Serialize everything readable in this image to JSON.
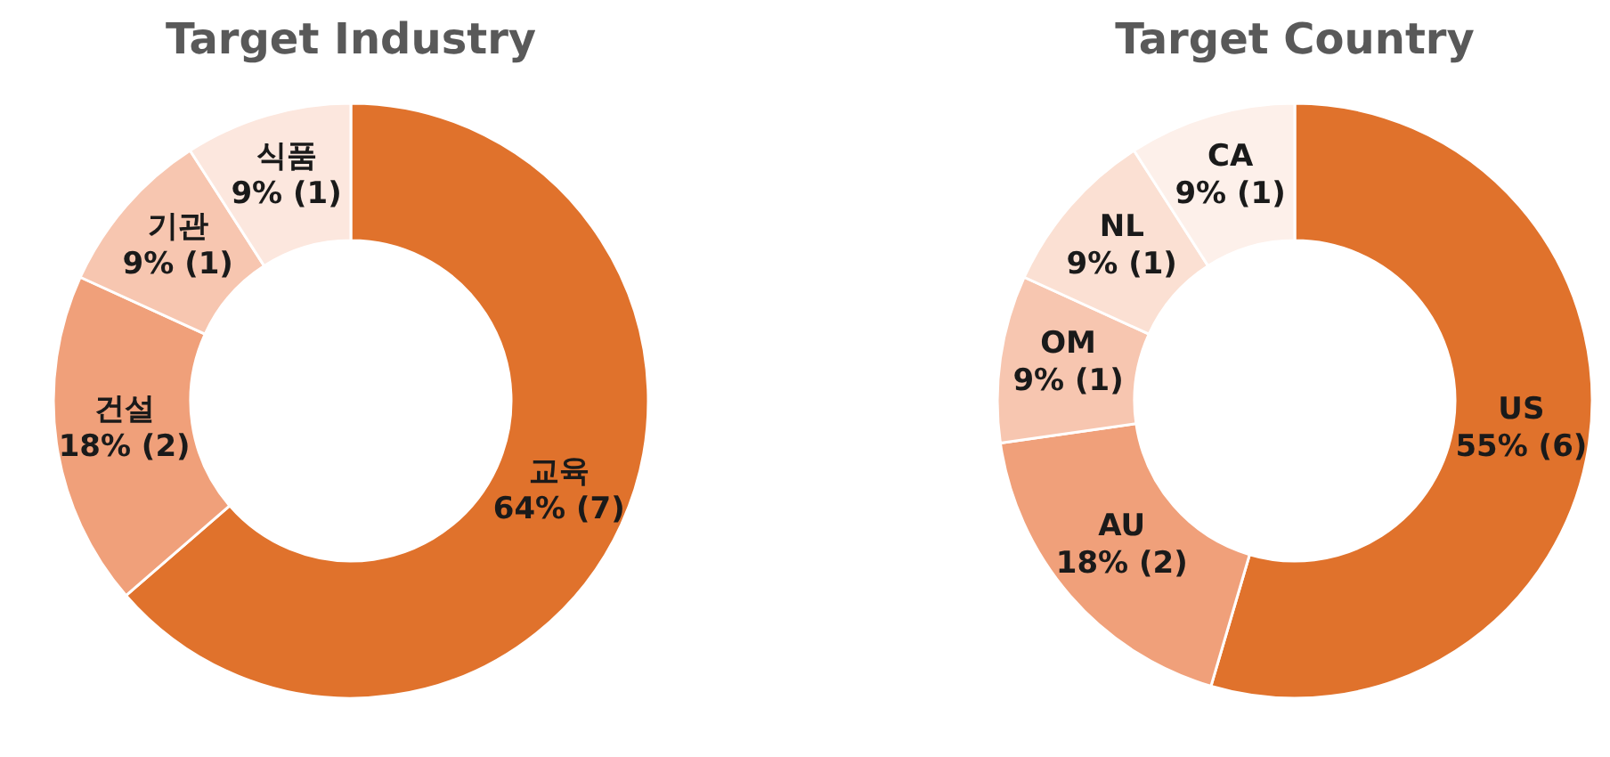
{
  "chart_data": [
    {
      "type": "donut",
      "title": "Target Industry",
      "categories": [
        "교육",
        "건설",
        "기관",
        "식품"
      ],
      "values": [
        7,
        2,
        1,
        1
      ],
      "value_labels": [
        "64% (7)",
        "18% (2)",
        "9% (1)",
        "9% (1)"
      ],
      "colors": [
        "#e0722c",
        "#f0a07a",
        "#f7c6b0",
        "#fce7de"
      ]
    },
    {
      "type": "donut",
      "title": "Target Country",
      "categories": [
        "US",
        "AU",
        "OM",
        "NL",
        "CA"
      ],
      "values": [
        6,
        2,
        1,
        1,
        1
      ],
      "value_labels": [
        "55% (6)",
        "18% (2)",
        "9% (1)",
        "9% (1)",
        "9% (1)"
      ],
      "colors": [
        "#e0722c",
        "#f0a07a",
        "#f7c6b0",
        "#fbe0d3",
        "#fdf0ea"
      ]
    }
  ]
}
